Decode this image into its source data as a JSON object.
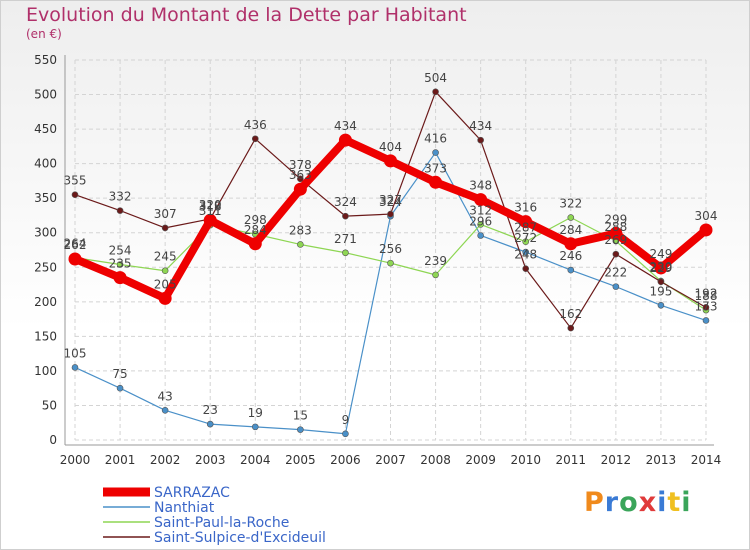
{
  "header": {
    "title": "Evolution du Montant de la Dette par Habitant",
    "subtitle": "(en €)"
  },
  "brand": {
    "text": "Proxiti",
    "colors": [
      "#f08a1c",
      "#3a7bd5",
      "#3aa55a",
      "#e03a3a",
      "#3a7bd5",
      "#f0c020",
      "#3aa55a"
    ]
  },
  "chart_data": {
    "type": "line",
    "x": [
      "2000",
      "2001",
      "2002",
      "2003",
      "2004",
      "2005",
      "2006",
      "2007",
      "2008",
      "2009",
      "2010",
      "2011",
      "2012",
      "2013",
      "2014"
    ],
    "ylim": [
      0,
      550
    ],
    "yticks": [
      "0",
      "50",
      "100",
      "150",
      "200",
      "250",
      "300",
      "350",
      "400",
      "450",
      "500",
      "550"
    ],
    "grid": true,
    "legend": "bottom-left",
    "series": [
      {
        "name": "Nanthiat",
        "color": "#4a90c8",
        "values": [
          105,
          75,
          43,
          23,
          19,
          15,
          9,
          324,
          416,
          296,
          272,
          246,
          222,
          195,
          173
        ],
        "labels": [
          "105",
          "75",
          "43",
          "23",
          "19",
          "15",
          "9",
          "324",
          "416",
          "296",
          "272",
          "246",
          "222",
          "195",
          "173"
        ]
      },
      {
        "name": "Saint-Paul-la-Roche",
        "color": "#8ed653",
        "values": [
          264,
          254,
          245,
          311,
          298,
          283,
          271,
          256,
          239,
          312,
          287,
          322,
          288,
          230,
          188
        ],
        "labels": [
          "264",
          "254",
          "245",
          "311",
          "298",
          "283",
          "271",
          "256",
          "239",
          "312",
          "287",
          "322",
          "288",
          "230",
          "188"
        ]
      },
      {
        "name": "Saint-Sulpice-d'Excideuil",
        "color": "#6b1a1a",
        "values": [
          355,
          332,
          307,
          320,
          436,
          378,
          324,
          327,
          504,
          434,
          248,
          162,
          269,
          229,
          192
        ],
        "labels": [
          "355",
          "332",
          "307",
          "320",
          "436",
          "378",
          "324",
          "327",
          "504",
          "434",
          "248",
          "162",
          "269",
          "229",
          "192"
        ]
      },
      {
        "name": "SARRAZAC",
        "color": "#ee0000",
        "values": [
          262,
          235,
          205,
          318,
          284,
          363,
          434,
          404,
          373,
          348,
          316,
          284,
          299,
          249,
          304
        ],
        "labels": [
          "262",
          "235",
          "205",
          "318",
          "284",
          "363",
          "434",
          "404",
          "373",
          "348",
          "316",
          "284",
          "299",
          "249",
          "304"
        ]
      }
    ],
    "legend_entries": [
      "SARRAZAC",
      "Nanthiat",
      "Saint-Paul-la-Roche",
      "Saint-Sulpice-d'Excideuil"
    ]
  }
}
